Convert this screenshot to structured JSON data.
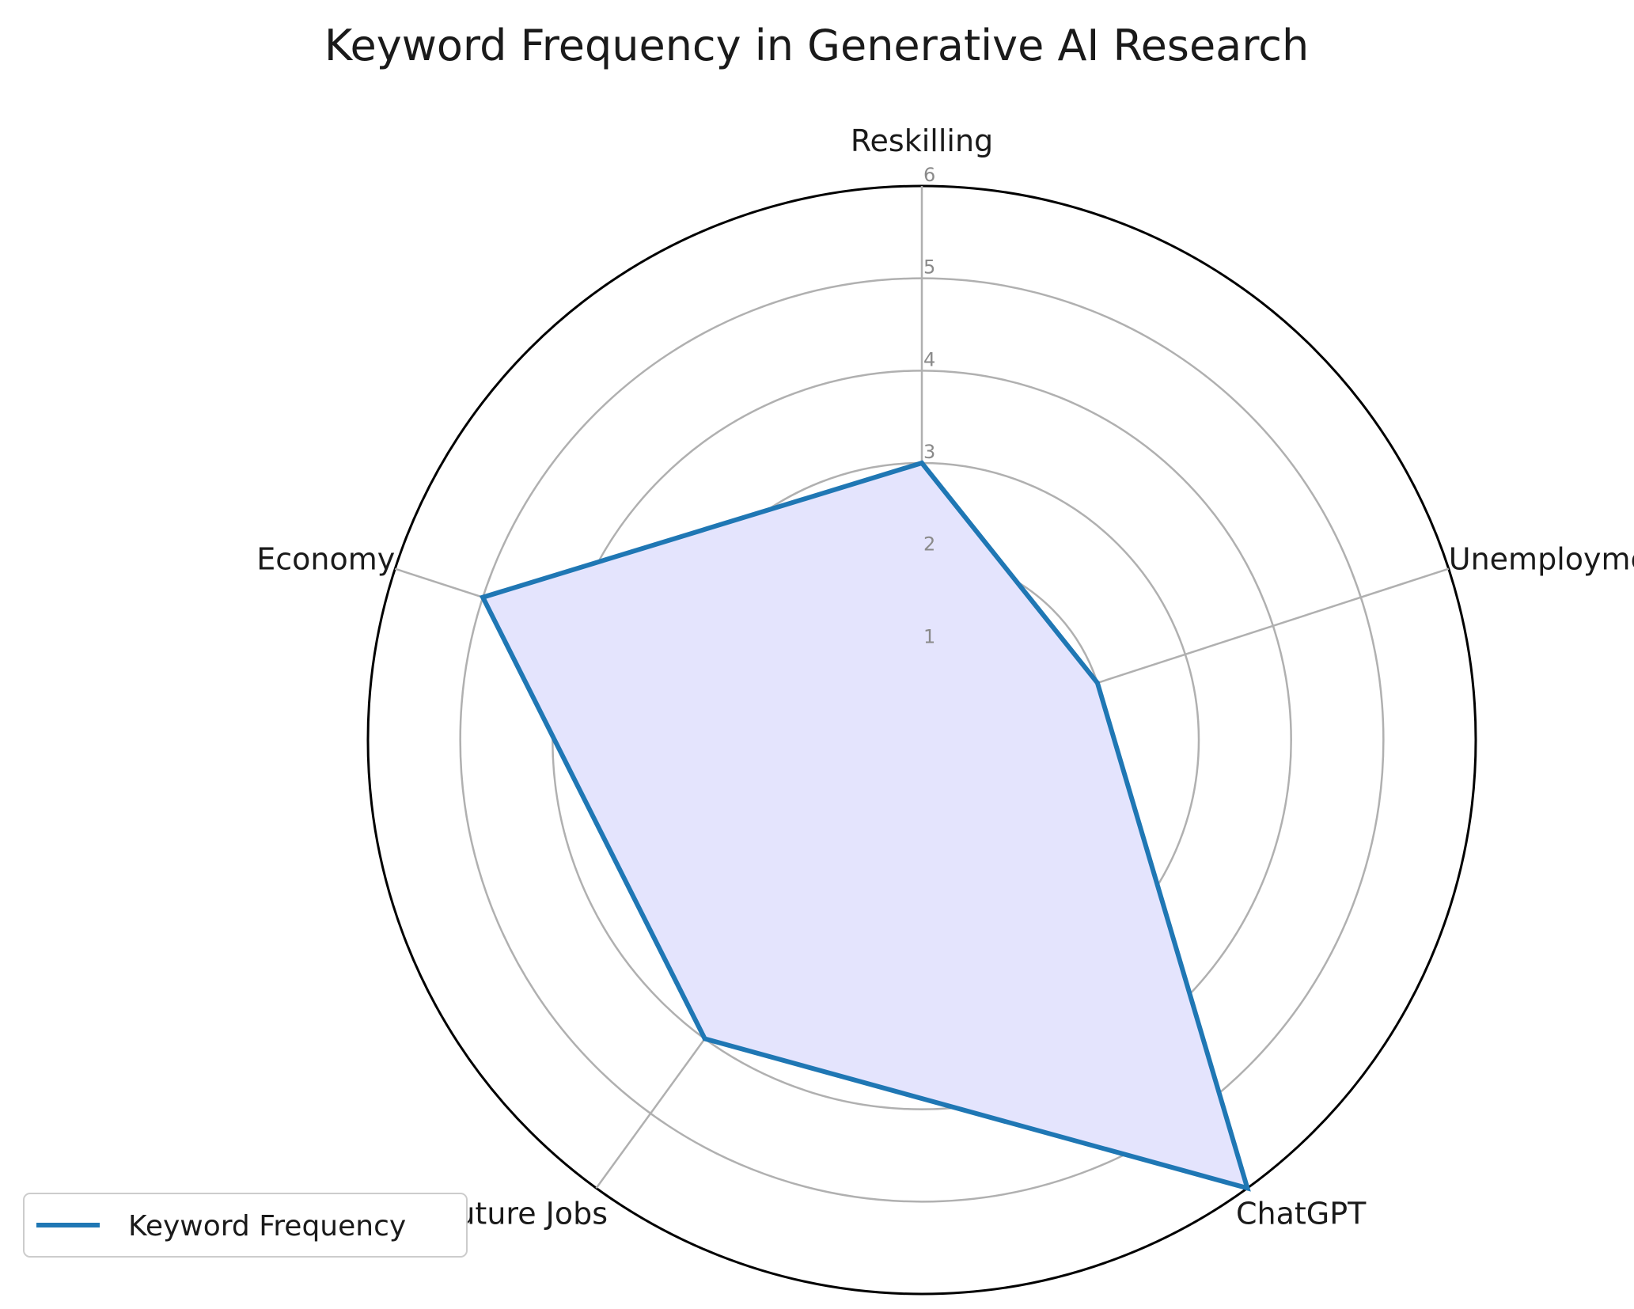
{
  "chart_data": {
    "type": "radar",
    "title": "Keyword Frequency in Generative AI Research",
    "categories": [
      "Reskilling",
      "Unemployment",
      "ChatGPT",
      "Future Jobs",
      "Economy"
    ],
    "series": [
      {
        "name": "Keyword Frequency",
        "values": [
          3,
          2,
          6,
          4,
          5
        ]
      }
    ],
    "rlim": [
      0,
      6
    ],
    "rticks": [
      1,
      2,
      3,
      4,
      5,
      6
    ],
    "rtick_labels": [
      "1",
      "2",
      "3",
      "4",
      "5",
      "6"
    ],
    "grid": true,
    "legend_position": "lower-left",
    "colors": {
      "line": "#1f77b4",
      "fill": "#e4e4fd",
      "grid": "#b0b0b0",
      "outer_circle": "#000000"
    }
  }
}
